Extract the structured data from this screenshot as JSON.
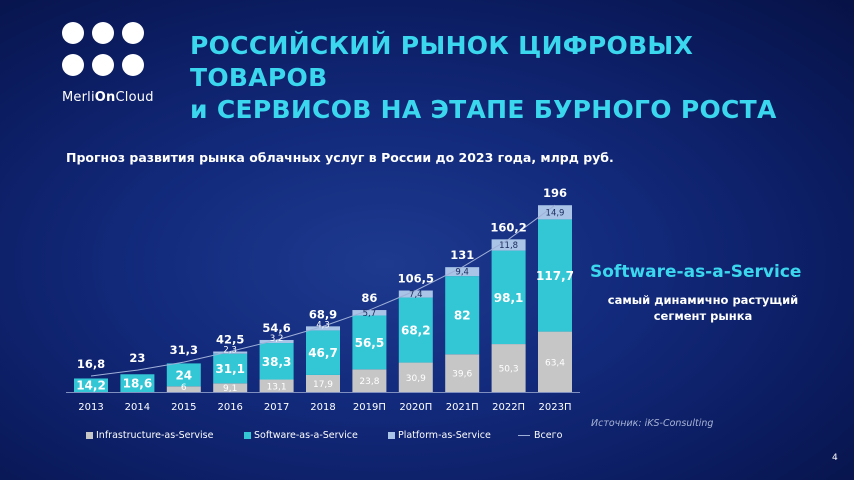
{
  "brand": {
    "name_pre": "Merli",
    "name_bold": "On",
    "name_post": "Cloud"
  },
  "title": {
    "line1": "РОССИЙСКИЙ РЫНОК ЦИФРОВЫХ ТОВАРОВ",
    "line2": "и СЕРВИСОВ НА ЭТАПЕ БУРНОГО РОСТА"
  },
  "subtitle": "Прогноз развития рынка облачных услуг в России до 2023 года, млрд руб.",
  "highlight": {
    "title": "Software-as-a-Service",
    "line1": "самый динамично растущий",
    "line2": "сегмент рынка"
  },
  "source": "Источник: iKS-Consulting",
  "page_number": "4",
  "colors": {
    "iaas": "#c6c6c6",
    "saas": "#33c7d6",
    "paas": "#a9c4e6",
    "total_line": "#9fb0d8",
    "title": "#3ad7ee"
  },
  "chart_data": {
    "type": "bar",
    "stacked": true,
    "categories": [
      "2013",
      "2014",
      "2015",
      "2016",
      "2017",
      "2018",
      "2019П",
      "2020П",
      "2021П",
      "2022П",
      "2023П"
    ],
    "series": [
      {
        "name": "Infrastructure-as-Servise",
        "values": [
          null,
          null,
          6,
          9.1,
          13.1,
          17.9,
          23.8,
          30.9,
          39.6,
          50.3,
          63.4
        ],
        "labels": [
          "",
          "",
          "6",
          "9,1",
          "13,1",
          "17,9",
          "23,8",
          "30,9",
          "39,6",
          "50,3",
          "63,4"
        ]
      },
      {
        "name": "Software-as-a-Service",
        "values": [
          14.2,
          18.6,
          24,
          31.1,
          38.3,
          46.7,
          56.5,
          68.2,
          82,
          98.1,
          117.7
        ],
        "labels": [
          "14,2",
          "18,6",
          "24",
          "31,1",
          "38,3",
          "46,7",
          "56,5",
          "68,2",
          "82",
          "98,1",
          "117,7"
        ]
      },
      {
        "name": "Platform-as-Service",
        "values": [
          null,
          null,
          null,
          2.3,
          3.2,
          4.3,
          5.7,
          7.4,
          9.4,
          11.8,
          14.9
        ],
        "labels": [
          "",
          "",
          "",
          "2,3",
          "3,2",
          "4,3",
          "5,7",
          "7,4",
          "9,4",
          "11,8",
          "14,9"
        ]
      }
    ],
    "totals": {
      "name": "Всего",
      "values": [
        16.8,
        23,
        31.3,
        42.5,
        54.6,
        68.9,
        86,
        106.5,
        131,
        160.2,
        196
      ],
      "labels": [
        "16,8",
        "23",
        "31,3",
        "42,5",
        "54,6",
        "68,9",
        "86",
        "106,5",
        "131",
        "160,2",
        "196"
      ]
    },
    "legend_position": "bottom",
    "grid": false,
    "ylim": [
      0,
      200
    ]
  }
}
